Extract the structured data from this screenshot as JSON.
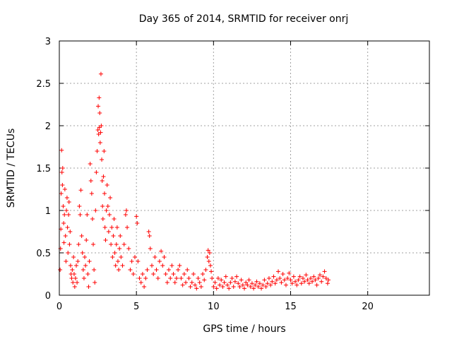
{
  "chart_data": {
    "type": "scatter",
    "title": "Day 365 of 2014, SRMTID for receiver onrj",
    "xlabel": "GPS time / hours",
    "ylabel": "SRMTID / TECUs",
    "xlim": [
      0,
      24
    ],
    "ylim": [
      0,
      3
    ],
    "xticks": [
      0,
      5,
      10,
      15,
      20
    ],
    "yticks": [
      0,
      0.5,
      1,
      1.5,
      2,
      2.5,
      3
    ],
    "xtick_labels": [
      "0",
      "5",
      "10",
      "15",
      "20"
    ],
    "ytick_labels": [
      "0",
      "0.5",
      "1",
      "1.5",
      "2",
      "2.5",
      "3"
    ],
    "grid": true,
    "marker": "plus",
    "color": "#ff0000",
    "series": [
      {
        "name": "SRMTID",
        "points": [
          [
            0.05,
            0.3
          ],
          [
            0.08,
            0.55
          ],
          [
            0.1,
            0.78
          ],
          [
            0.12,
            1.2
          ],
          [
            0.15,
            1.71
          ],
          [
            0.17,
            1.45
          ],
          [
            0.2,
            1.3
          ],
          [
            0.22,
            1.5
          ],
          [
            0.25,
            1.05
          ],
          [
            0.28,
            0.85
          ],
          [
            0.3,
            0.62
          ],
          [
            0.33,
            0.95
          ],
          [
            0.36,
            1.25
          ],
          [
            0.4,
            0.7
          ],
          [
            0.43,
            0.4
          ],
          [
            0.46,
            1.0
          ],
          [
            0.5,
            1.15
          ],
          [
            0.53,
            0.8
          ],
          [
            0.56,
            0.5
          ],
          [
            0.6,
            0.95
          ],
          [
            0.63,
            1.1
          ],
          [
            0.66,
            0.6
          ],
          [
            0.7,
            0.75
          ],
          [
            0.73,
            0.35
          ],
          [
            0.76,
            0.25
          ],
          [
            0.8,
            0.2
          ],
          [
            0.84,
            0.3
          ],
          [
            0.88,
            0.15
          ],
          [
            0.92,
            0.45
          ],
          [
            0.96,
            0.25
          ],
          [
            1.0,
            0.1
          ],
          [
            1.05,
            0.2
          ],
          [
            1.1,
            0.35
          ],
          [
            1.15,
            0.15
          ],
          [
            1.2,
            0.4
          ],
          [
            1.25,
            0.6
          ],
          [
            1.3,
            1.05
          ],
          [
            1.35,
            0.95
          ],
          [
            1.4,
            1.24
          ],
          [
            1.45,
            0.7
          ],
          [
            1.5,
            0.5
          ],
          [
            1.55,
            0.3
          ],
          [
            1.6,
            0.2
          ],
          [
            1.65,
            0.45
          ],
          [
            1.7,
            0.35
          ],
          [
            1.75,
            0.65
          ],
          [
            1.8,
            0.95
          ],
          [
            1.85,
            0.25
          ],
          [
            1.9,
            0.1
          ],
          [
            1.95,
            0.4
          ],
          [
            2.0,
            1.55
          ],
          [
            2.05,
            1.35
          ],
          [
            2.1,
            1.2
          ],
          [
            2.15,
            0.9
          ],
          [
            2.2,
            0.6
          ],
          [
            2.25,
            0.3
          ],
          [
            2.3,
            0.15
          ],
          [
            2.35,
            1.0
          ],
          [
            2.4,
            1.45
          ],
          [
            2.45,
            1.7
          ],
          [
            2.5,
            1.95
          ],
          [
            2.52,
            2.23
          ],
          [
            2.55,
            1.9
          ],
          [
            2.58,
            2.33
          ],
          [
            2.6,
            1.98
          ],
          [
            2.62,
            2.15
          ],
          [
            2.65,
            1.8
          ],
          [
            2.68,
            1.92
          ],
          [
            2.7,
            2.61
          ],
          [
            2.72,
            2.0
          ],
          [
            2.75,
            1.6
          ],
          [
            2.78,
            1.35
          ],
          [
            2.8,
            1.05
          ],
          [
            2.83,
            0.9
          ],
          [
            2.86,
            1.4
          ],
          [
            2.9,
            1.7
          ],
          [
            2.93,
            1.2
          ],
          [
            2.96,
            0.8
          ],
          [
            3.0,
            0.65
          ],
          [
            3.05,
            1.0
          ],
          [
            3.1,
            1.3
          ],
          [
            3.15,
            1.05
          ],
          [
            3.2,
            0.75
          ],
          [
            3.25,
            0.95
          ],
          [
            3.3,
            1.15
          ],
          [
            3.35,
            0.6
          ],
          [
            3.4,
            0.8
          ],
          [
            3.45,
            0.45
          ],
          [
            3.5,
            0.7
          ],
          [
            3.55,
            0.9
          ],
          [
            3.6,
            0.5
          ],
          [
            3.65,
            0.35
          ],
          [
            3.7,
            0.6
          ],
          [
            3.75,
            0.8
          ],
          [
            3.8,
            0.4
          ],
          [
            3.85,
            0.3
          ],
          [
            3.9,
            0.55
          ],
          [
            3.95,
            0.7
          ],
          [
            4.0,
            0.45
          ],
          [
            4.1,
            0.35
          ],
          [
            4.2,
            0.6
          ],
          [
            4.3,
            0.95
          ],
          [
            4.35,
            1.0
          ],
          [
            4.4,
            0.8
          ],
          [
            4.5,
            0.55
          ],
          [
            4.6,
            0.3
          ],
          [
            4.7,
            0.4
          ],
          [
            4.8,
            0.25
          ],
          [
            4.9,
            0.45
          ],
          [
            5.0,
            0.93
          ],
          [
            5.05,
            0.85
          ],
          [
            5.1,
            0.4
          ],
          [
            5.2,
            0.2
          ],
          [
            5.3,
            0.15
          ],
          [
            5.4,
            0.25
          ],
          [
            5.5,
            0.1
          ],
          [
            5.6,
            0.2
          ],
          [
            5.7,
            0.3
          ],
          [
            5.8,
            0.75
          ],
          [
            5.85,
            0.7
          ],
          [
            5.9,
            0.55
          ],
          [
            6.0,
            0.35
          ],
          [
            6.1,
            0.25
          ],
          [
            6.2,
            0.45
          ],
          [
            6.3,
            0.3
          ],
          [
            6.4,
            0.2
          ],
          [
            6.5,
            0.4
          ],
          [
            6.6,
            0.52
          ],
          [
            6.7,
            0.35
          ],
          [
            6.8,
            0.45
          ],
          [
            6.9,
            0.25
          ],
          [
            7.0,
            0.15
          ],
          [
            7.1,
            0.3
          ],
          [
            7.2,
            0.2
          ],
          [
            7.3,
            0.35
          ],
          [
            7.4,
            0.25
          ],
          [
            7.5,
            0.15
          ],
          [
            7.6,
            0.2
          ],
          [
            7.7,
            0.3
          ],
          [
            7.8,
            0.35
          ],
          [
            7.9,
            0.2
          ],
          [
            8.0,
            0.12
          ],
          [
            8.1,
            0.25
          ],
          [
            8.2,
            0.15
          ],
          [
            8.3,
            0.3
          ],
          [
            8.4,
            0.2
          ],
          [
            8.5,
            0.1
          ],
          [
            8.6,
            0.15
          ],
          [
            8.7,
            0.25
          ],
          [
            8.8,
            0.12
          ],
          [
            8.9,
            0.08
          ],
          [
            9.0,
            0.2
          ],
          [
            9.1,
            0.15
          ],
          [
            9.2,
            0.1
          ],
          [
            9.3,
            0.25
          ],
          [
            9.4,
            0.18
          ],
          [
            9.5,
            0.3
          ],
          [
            9.6,
            0.45
          ],
          [
            9.65,
            0.53
          ],
          [
            9.7,
            0.4
          ],
          [
            9.75,
            0.5
          ],
          [
            9.8,
            0.35
          ],
          [
            9.85,
            0.28
          ],
          [
            9.9,
            0.2
          ],
          [
            10.0,
            0.1
          ],
          [
            10.1,
            0.15
          ],
          [
            10.2,
            0.08
          ],
          [
            10.3,
            0.2
          ],
          [
            10.4,
            0.12
          ],
          [
            10.5,
            0.18
          ],
          [
            10.6,
            0.1
          ],
          [
            10.7,
            0.15
          ],
          [
            10.8,
            0.22
          ],
          [
            10.9,
            0.12
          ],
          [
            11.0,
            0.08
          ],
          [
            11.1,
            0.15
          ],
          [
            11.2,
            0.2
          ],
          [
            11.3,
            0.1
          ],
          [
            11.4,
            0.16
          ],
          [
            11.5,
            0.22
          ],
          [
            11.6,
            0.14
          ],
          [
            11.7,
            0.1
          ],
          [
            11.8,
            0.18
          ],
          [
            11.9,
            0.12
          ],
          [
            12.0,
            0.08
          ],
          [
            12.1,
            0.15
          ],
          [
            12.2,
            0.12
          ],
          [
            12.3,
            0.18
          ],
          [
            12.4,
            0.1
          ],
          [
            12.5,
            0.14
          ],
          [
            12.6,
            0.08
          ],
          [
            12.7,
            0.12
          ],
          [
            12.8,
            0.16
          ],
          [
            12.9,
            0.1
          ],
          [
            13.0,
            0.14
          ],
          [
            13.1,
            0.08
          ],
          [
            13.2,
            0.12
          ],
          [
            13.3,
            0.18
          ],
          [
            13.4,
            0.1
          ],
          [
            13.5,
            0.14
          ],
          [
            13.6,
            0.2
          ],
          [
            13.7,
            0.12
          ],
          [
            13.8,
            0.16
          ],
          [
            13.9,
            0.22
          ],
          [
            14.0,
            0.14
          ],
          [
            14.1,
            0.18
          ],
          [
            14.2,
            0.28
          ],
          [
            14.3,
            0.2
          ],
          [
            14.4,
            0.15
          ],
          [
            14.5,
            0.25
          ],
          [
            14.6,
            0.18
          ],
          [
            14.7,
            0.12
          ],
          [
            14.8,
            0.2
          ],
          [
            14.9,
            0.26
          ],
          [
            15.0,
            0.18
          ],
          [
            15.1,
            0.14
          ],
          [
            15.2,
            0.22
          ],
          [
            15.3,
            0.16
          ],
          [
            15.4,
            0.12
          ],
          [
            15.5,
            0.18
          ],
          [
            15.6,
            0.22
          ],
          [
            15.7,
            0.14
          ],
          [
            15.8,
            0.2
          ],
          [
            15.9,
            0.16
          ],
          [
            16.0,
            0.24
          ],
          [
            16.1,
            0.18
          ],
          [
            16.2,
            0.14
          ],
          [
            16.3,
            0.2
          ],
          [
            16.4,
            0.16
          ],
          [
            16.5,
            0.22
          ],
          [
            16.6,
            0.18
          ],
          [
            16.7,
            0.12
          ],
          [
            16.8,
            0.2
          ],
          [
            16.9,
            0.24
          ],
          [
            17.0,
            0.16
          ],
          [
            17.1,
            0.22
          ],
          [
            17.2,
            0.28
          ],
          [
            17.3,
            0.2
          ],
          [
            17.4,
            0.14
          ],
          [
            17.45,
            0.18
          ]
        ]
      }
    ]
  }
}
